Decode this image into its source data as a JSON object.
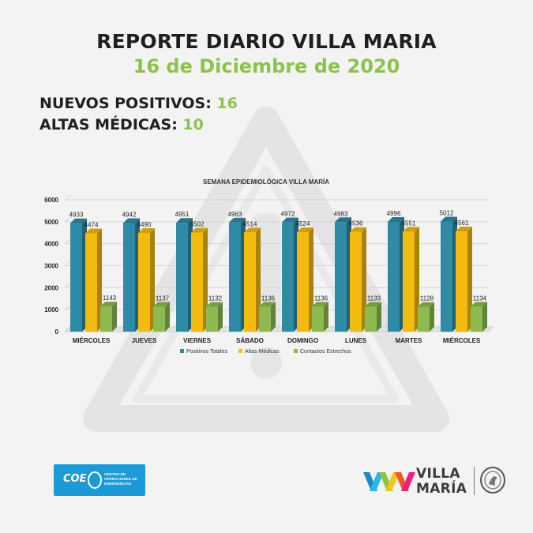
{
  "header": {
    "title": "REPORTE DIARIO VILLA MARIA",
    "date": "16 de Diciembre de 2020"
  },
  "stats": [
    {
      "label": "NUEVOS POSITIVOS:",
      "value": "16"
    },
    {
      "label": "ALTAS MÉDICAS:",
      "value": "10"
    }
  ],
  "colors": {
    "accent_green": "#8bc34a",
    "series_blue": "#2f8aa5",
    "series_yellow": "#f2bb0d",
    "series_green": "#8cba4e"
  },
  "chart_data": {
    "type": "bar",
    "title": "SEMANA EPIDEMIOLÓGICA VILLA MARÍA",
    "categories": [
      "MIÉRCOLES",
      "JUEVES",
      "VIERNES",
      "SÁBADO",
      "DOMINGO",
      "LUNES",
      "MARTES",
      "MIÉRCOLES"
    ],
    "series": [
      {
        "name": "Positivos Totales",
        "color": "#2f8aa5",
        "values": [
          4933,
          4942,
          4951,
          4963,
          4972,
          4983,
          4996,
          5012
        ]
      },
      {
        "name": "Altas Médicas",
        "color": "#f2bb0d",
        "values": [
          4474,
          4490,
          4502,
          4514,
          4524,
          4536,
          4551,
          4561
        ]
      },
      {
        "name": "Contactos Estrechos",
        "color": "#8cba4e",
        "values": [
          1143,
          1137,
          1132,
          1136,
          1136,
          1133,
          1128,
          1134
        ]
      }
    ],
    "ylim": [
      0,
      6000
    ],
    "yticks": [
      0,
      1000,
      2000,
      3000,
      4000,
      5000,
      6000
    ],
    "grid": true,
    "legend": "bottom"
  },
  "footer": {
    "coe_name": "COE",
    "coe_text": "CENTRO DE OPERACIONES DE EMERGENCIAS",
    "brand_line1": "VILLA",
    "brand_line2": "MARÍA"
  }
}
